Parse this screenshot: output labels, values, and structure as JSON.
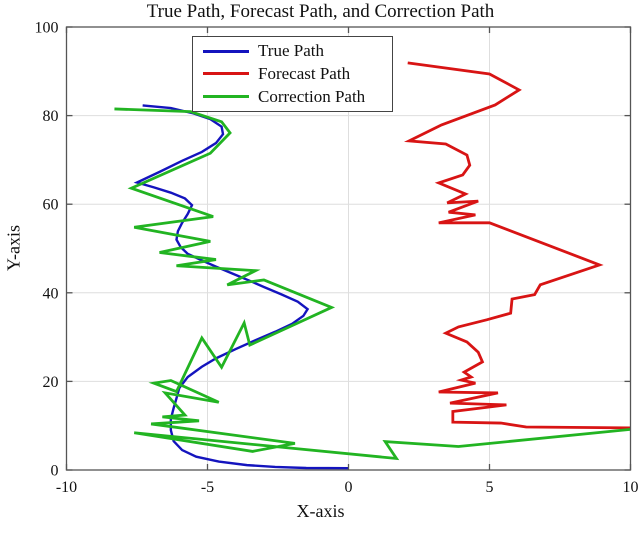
{
  "chart_data": {
    "type": "line",
    "title": "True Path, Forecast Path, and Correction Path",
    "xlabel": "X-axis",
    "ylabel": "Y-axis",
    "xlim": [
      -10,
      10
    ],
    "ylim": [
      0,
      100
    ],
    "xticks": [
      -10,
      -5,
      0,
      5,
      10
    ],
    "yticks": [
      0,
      20,
      40,
      60,
      80,
      100
    ],
    "grid": true,
    "legend": {
      "position": "top-center",
      "border": true
    },
    "colors": {
      "axis": "#555555",
      "grid": "#DEDEDE",
      "text": "#111111",
      "background": "#FFFFFF"
    },
    "series": [
      {
        "name": "True Path",
        "color": "#1414BE",
        "width": 2.4,
        "points": [
          [
            0,
            0.4
          ],
          [
            -1.5,
            0.45
          ],
          [
            -2.6,
            0.7
          ],
          [
            -3.6,
            1.1
          ],
          [
            -4.6,
            1.9
          ],
          [
            -5.4,
            3.0
          ],
          [
            -5.9,
            4.5
          ],
          [
            -6.2,
            6.5
          ],
          [
            -6.3,
            9.0
          ],
          [
            -6.3,
            11.5
          ],
          [
            -6.2,
            14.0
          ],
          [
            -6.1,
            16.2
          ],
          [
            -6.0,
            18.5
          ],
          [
            -5.7,
            21.0
          ],
          [
            -5.2,
            23.3
          ],
          [
            -4.7,
            25.2
          ],
          [
            -4.0,
            27.3
          ],
          [
            -3.3,
            29.3
          ],
          [
            -2.6,
            31.2
          ],
          [
            -2.0,
            33.0
          ],
          [
            -1.6,
            34.8
          ],
          [
            -1.45,
            36.3
          ],
          [
            -1.8,
            38.0
          ],
          [
            -2.4,
            39.7
          ],
          [
            -3.0,
            41.3
          ],
          [
            -3.5,
            42.7
          ],
          [
            -4.1,
            44.3
          ],
          [
            -4.7,
            45.9
          ],
          [
            -5.2,
            47.3
          ],
          [
            -5.7,
            48.8
          ],
          [
            -5.95,
            50.3
          ],
          [
            -6.1,
            52.0
          ],
          [
            -6.05,
            53.9
          ],
          [
            -5.9,
            55.8
          ],
          [
            -5.7,
            57.8
          ],
          [
            -5.55,
            59.8
          ],
          [
            -5.8,
            61.3
          ],
          [
            -6.3,
            62.6
          ],
          [
            -6.9,
            63.8
          ],
          [
            -7.5,
            64.9
          ],
          [
            -6.7,
            67.3
          ],
          [
            -5.9,
            69.8
          ],
          [
            -5.2,
            71.8
          ],
          [
            -4.7,
            73.8
          ],
          [
            -4.45,
            75.8
          ],
          [
            -4.5,
            77.5
          ],
          [
            -4.9,
            79.2
          ],
          [
            -5.5,
            80.5
          ],
          [
            -6.3,
            81.7
          ],
          [
            -7.3,
            82.3
          ]
        ]
      },
      {
        "name": "Forecast Path",
        "color": "#D81414",
        "width": 2.8,
        "points": [
          [
            2.1,
            91.9
          ],
          [
            5.0,
            89.4
          ],
          [
            6.05,
            85.8
          ],
          [
            5.2,
            82.4
          ],
          [
            3.3,
            77.9
          ],
          [
            2.15,
            74.3
          ],
          [
            3.45,
            73.6
          ],
          [
            4.2,
            71.1
          ],
          [
            4.3,
            68.8
          ],
          [
            4.05,
            66.6
          ],
          [
            3.2,
            64.8
          ],
          [
            4.15,
            62.3
          ],
          [
            3.5,
            60.3
          ],
          [
            4.6,
            60.7
          ],
          [
            3.55,
            58.2
          ],
          [
            4.5,
            57.6
          ],
          [
            3.2,
            55.8
          ],
          [
            5.0,
            55.8
          ],
          [
            8.9,
            46.3
          ],
          [
            6.8,
            41.8
          ],
          [
            6.6,
            39.6
          ],
          [
            5.8,
            38.6
          ],
          [
            5.75,
            35.4
          ],
          [
            4.9,
            33.9
          ],
          [
            3.9,
            32.3
          ],
          [
            3.45,
            30.9
          ],
          [
            4.2,
            28.9
          ],
          [
            4.6,
            26.6
          ],
          [
            4.75,
            24.4
          ],
          [
            4.1,
            22.1
          ],
          [
            4.35,
            21.0
          ],
          [
            4.0,
            20.3
          ],
          [
            4.5,
            19.6
          ],
          [
            3.2,
            17.6
          ],
          [
            5.3,
            17.4
          ],
          [
            3.6,
            15.1
          ],
          [
            5.6,
            14.7
          ],
          [
            3.7,
            13.2
          ],
          [
            3.7,
            10.8
          ],
          [
            5.4,
            10.6
          ],
          [
            6.3,
            9.7
          ],
          [
            10.2,
            9.5
          ]
        ]
      },
      {
        "name": "Correction Path",
        "color": "#22B422",
        "width": 2.8,
        "points": [
          [
            10.2,
            9.3
          ],
          [
            3.9,
            5.3
          ],
          [
            1.3,
            6.4
          ],
          [
            1.7,
            2.6
          ],
          [
            -7.6,
            8.4
          ],
          [
            -3.4,
            4.2
          ],
          [
            -1.9,
            6.0
          ],
          [
            -7.0,
            10.4
          ],
          [
            -5.3,
            11.1
          ],
          [
            -6.6,
            12.0
          ],
          [
            -5.8,
            12.4
          ],
          [
            -6.5,
            17.4
          ],
          [
            -4.6,
            15.3
          ],
          [
            -6.3,
            20.2
          ],
          [
            -6.9,
            19.6
          ],
          [
            -6.1,
            17.7
          ],
          [
            -5.2,
            29.8
          ],
          [
            -4.5,
            23.2
          ],
          [
            -3.7,
            33.2
          ],
          [
            -3.5,
            28.2
          ],
          [
            -0.6,
            36.7
          ],
          [
            -3.0,
            42.9
          ],
          [
            -4.3,
            41.8
          ],
          [
            -3.3,
            45.0
          ],
          [
            -6.1,
            46.1
          ],
          [
            -4.7,
            47.5
          ],
          [
            -6.7,
            49.1
          ],
          [
            -4.9,
            51.6
          ],
          [
            -7.6,
            54.8
          ],
          [
            -4.8,
            57.2
          ],
          [
            -7.7,
            63.6
          ],
          [
            -4.9,
            71.5
          ],
          [
            -4.2,
            76.1
          ],
          [
            -4.5,
            78.6
          ],
          [
            -5.6,
            80.9
          ],
          [
            -8.3,
            81.5
          ]
        ]
      }
    ]
  }
}
